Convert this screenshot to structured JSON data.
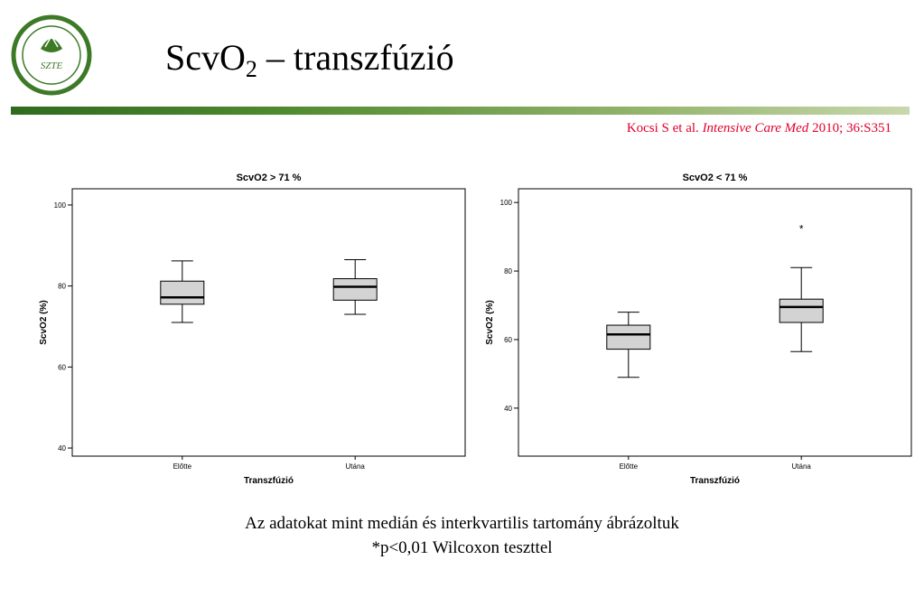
{
  "header": {
    "title_main": "ScvO",
    "title_sub": "2",
    "title_rest": " – transzfúzió",
    "citation_authors": "Kocsi S et al. ",
    "citation_journal": "Intensive Care Med",
    "citation_rest": " 2010; 36:S351",
    "logo_text": "SZTE",
    "accent_color": "#4f8a2f",
    "citation_color": "#e0002b"
  },
  "chart_data": [
    {
      "type": "boxplot",
      "title": "ScvO2 > 71 %",
      "xlabel": "Transzfúzió",
      "ylabel": "ScvO2 (%)",
      "ylim": [
        38,
        104
      ],
      "yticks": [
        40,
        60,
        80,
        100
      ],
      "categories": [
        "Előtte",
        "Utána"
      ],
      "boxes": [
        {
          "min": 71,
          "q1": 75.5,
          "median": 77.2,
          "q3": 81.2,
          "max": 86.2
        },
        {
          "min": 73,
          "q1": 76.5,
          "median": 79.8,
          "q3": 81.8,
          "max": 86.5
        }
      ],
      "outliers": []
    },
    {
      "type": "boxplot",
      "title": "ScvO2 < 71 %",
      "xlabel": "Transzfúzió",
      "ylabel": "ScvO2 (%)",
      "ylim": [
        26,
        104
      ],
      "yticks": [
        40,
        60,
        80,
        100
      ],
      "categories": [
        "Előtte",
        "Utána"
      ],
      "boxes": [
        {
          "min": 49,
          "q1": 57.2,
          "median": 61.5,
          "q3": 64.2,
          "max": 68
        },
        {
          "min": 56.5,
          "q1": 65,
          "median": 69.5,
          "q3": 71.8,
          "max": 81
        }
      ],
      "outliers": [
        {
          "category_index": 1,
          "value": 92.5,
          "label": "*"
        }
      ]
    }
  ],
  "captions": {
    "line1": "Az adatokat mint medián és interkvartilis tartomány ábrázoltuk",
    "line2": "*p<0,01 Wilcoxon  teszttel"
  }
}
